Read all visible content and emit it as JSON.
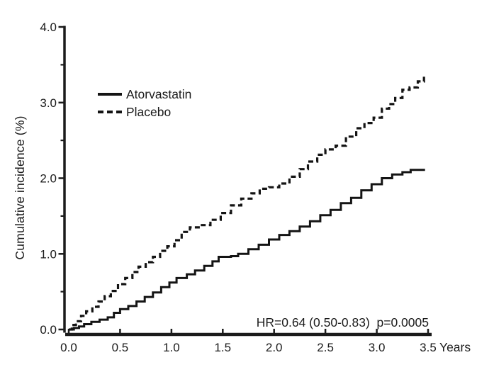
{
  "figure": {
    "background_color": "#ffffff",
    "ink_color": "#1b1b1b",
    "curve_color": "#141414"
  },
  "chart_data": {
    "type": "line",
    "subtype": "step-cumulative-incidence",
    "title": "",
    "xlabel": "Years",
    "ylabel": "Cumulative incidence (%)",
    "xlim": [
      0,
      3.5
    ],
    "ylim": [
      0,
      4.0
    ],
    "grid": false,
    "legend_position": "upper-left-inside",
    "annotation": "HR=0.64 (0.50-0.83)  p=0.0005",
    "x_tick_labels": [
      "0.0",
      "0.5",
      "1.0",
      "1.5",
      "2.0",
      "2.5",
      "3.0",
      "3.5"
    ],
    "y_tick_labels": [
      "0.0",
      "1.0",
      "2.0",
      "3.0",
      "4.0"
    ],
    "y_tick_values": [
      0,
      1,
      2,
      3,
      4
    ],
    "y_minor_tick_values": [
      0.5,
      1.5,
      2.5,
      3.5
    ],
    "series": [
      {
        "name": "Atorvastatin",
        "style": "solid",
        "final_value": 2.11,
        "points": [
          [
            0.0,
            0.0
          ],
          [
            0.05,
            0.02
          ],
          [
            0.1,
            0.04
          ],
          [
            0.15,
            0.07
          ],
          [
            0.22,
            0.1
          ],
          [
            0.3,
            0.13
          ],
          [
            0.38,
            0.16
          ],
          [
            0.44,
            0.22
          ],
          [
            0.5,
            0.27
          ],
          [
            0.58,
            0.31
          ],
          [
            0.66,
            0.37
          ],
          [
            0.74,
            0.43
          ],
          [
            0.82,
            0.49
          ],
          [
            0.9,
            0.56
          ],
          [
            0.98,
            0.62
          ],
          [
            1.05,
            0.68
          ],
          [
            1.15,
            0.73
          ],
          [
            1.23,
            0.78
          ],
          [
            1.32,
            0.84
          ],
          [
            1.4,
            0.9
          ],
          [
            1.46,
            0.96
          ],
          [
            1.58,
            0.97
          ],
          [
            1.65,
            1.0
          ],
          [
            1.75,
            1.06
          ],
          [
            1.85,
            1.12
          ],
          [
            1.95,
            1.19
          ],
          [
            2.05,
            1.25
          ],
          [
            2.15,
            1.3
          ],
          [
            2.25,
            1.36
          ],
          [
            2.35,
            1.43
          ],
          [
            2.45,
            1.51
          ],
          [
            2.55,
            1.58
          ],
          [
            2.65,
            1.67
          ],
          [
            2.75,
            1.74
          ],
          [
            2.85,
            1.84
          ],
          [
            2.95,
            1.92
          ],
          [
            3.05,
            2.0
          ],
          [
            3.15,
            2.05
          ],
          [
            3.25,
            2.08
          ],
          [
            3.33,
            2.11
          ],
          [
            3.47,
            2.11
          ]
        ]
      },
      {
        "name": "Placebo",
        "style": "dashed",
        "final_value": 3.35,
        "points": [
          [
            0.0,
            0.0
          ],
          [
            0.03,
            0.06
          ],
          [
            0.07,
            0.11
          ],
          [
            0.12,
            0.18
          ],
          [
            0.17,
            0.24
          ],
          [
            0.23,
            0.3
          ],
          [
            0.29,
            0.37
          ],
          [
            0.35,
            0.44
          ],
          [
            0.41,
            0.51
          ],
          [
            0.48,
            0.6
          ],
          [
            0.55,
            0.68
          ],
          [
            0.62,
            0.76
          ],
          [
            0.68,
            0.83
          ],
          [
            0.75,
            0.89
          ],
          [
            0.82,
            0.96
          ],
          [
            0.89,
            1.04
          ],
          [
            0.96,
            1.1
          ],
          [
            1.03,
            1.18
          ],
          [
            1.1,
            1.29
          ],
          [
            1.18,
            1.35
          ],
          [
            1.28,
            1.38
          ],
          [
            1.38,
            1.45
          ],
          [
            1.48,
            1.54
          ],
          [
            1.58,
            1.64
          ],
          [
            1.68,
            1.73
          ],
          [
            1.78,
            1.8
          ],
          [
            1.86,
            1.86
          ],
          [
            1.95,
            1.88
          ],
          [
            2.05,
            1.93
          ],
          [
            2.15,
            2.02
          ],
          [
            2.25,
            2.12
          ],
          [
            2.33,
            2.22
          ],
          [
            2.42,
            2.31
          ],
          [
            2.5,
            2.38
          ],
          [
            2.6,
            2.43
          ],
          [
            2.7,
            2.55
          ],
          [
            2.8,
            2.66
          ],
          [
            2.88,
            2.73
          ],
          [
            2.97,
            2.8
          ],
          [
            3.05,
            2.92
          ],
          [
            3.12,
            2.98
          ],
          [
            3.18,
            3.06
          ],
          [
            3.25,
            3.17
          ],
          [
            3.32,
            3.2
          ],
          [
            3.4,
            3.28
          ],
          [
            3.46,
            3.35
          ]
        ]
      }
    ]
  }
}
